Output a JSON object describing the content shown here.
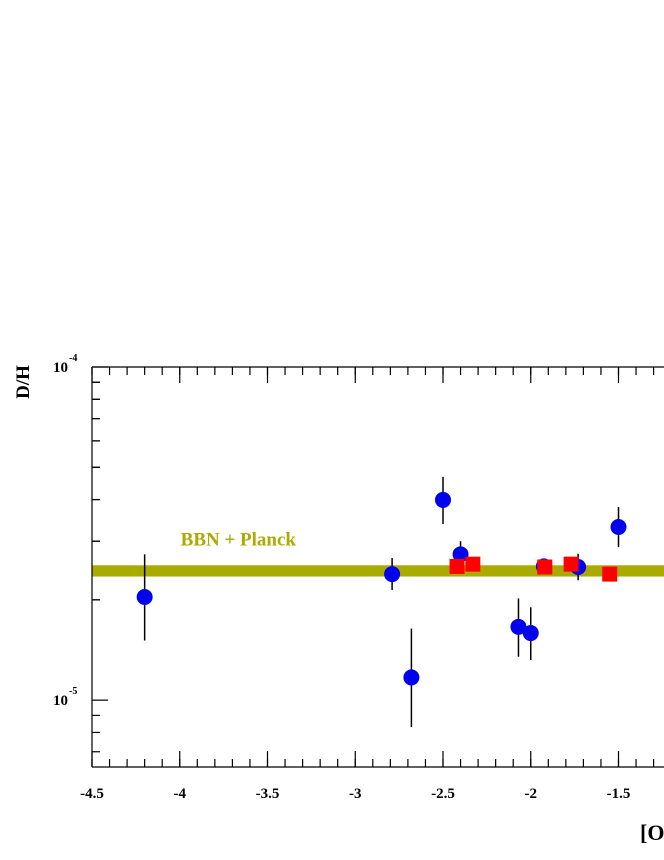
{
  "chart_data": {
    "type": "scatter",
    "x_label": "[O",
    "y_label": "D/H",
    "xlim": [
      -4.5,
      -1.24
    ],
    "xticks": [
      -4.5,
      -4,
      -3.5,
      -3,
      -2.5,
      -2,
      -1.5
    ],
    "ylim": [
      6.3e-06,
      0.0001
    ],
    "yticks": [
      {
        "value": 1e-05,
        "label": "10",
        "exponent": "-5"
      },
      {
        "value": 0.0001,
        "label": "10",
        "exponent": "-4"
      }
    ],
    "log_y": true,
    "band": {
      "label": "BBN + Planck",
      "lower": 2.35e-05,
      "upper": 2.54e-05,
      "color": "#aaaa00"
    },
    "series": [
      {
        "marker": "circle",
        "color": "#0000ee",
        "x": [
          -4.2,
          -2.79,
          -2.68,
          -2.5,
          -2.4,
          -2.07,
          -2.0,
          -1.925,
          -1.73,
          -1.5
        ],
        "values": [
          2.04e-05,
          2.39e-05,
          1.17e-05,
          3.99e-05,
          2.74e-05,
          1.66e-05,
          1.59e-05,
          2.52e-05,
          2.51e-05,
          3.31e-05
        ],
        "err_plus": [
          7e-06,
          2.8e-06,
          4.7e-06,
          6.9e-06,
          2.6e-06,
          3.6e-06,
          3.1e-06,
          1e-06,
          2.4e-06,
          4.9e-06
        ],
        "err_minus": [
          5.3e-06,
          2.5e-06,
          3.4e-06,
          6.1e-06,
          2.6e-06,
          3.1e-06,
          2.7e-06,
          1e-06,
          2.2e-06,
          4.3e-06
        ]
      },
      {
        "marker": "square",
        "color": "#ff0000",
        "x": [
          -2.42,
          -2.33,
          -1.92,
          -1.77,
          -1.55
        ],
        "values": [
          2.52e-05,
          2.56e-05,
          2.51e-05,
          2.56e-05,
          2.39e-05
        ]
      }
    ]
  }
}
